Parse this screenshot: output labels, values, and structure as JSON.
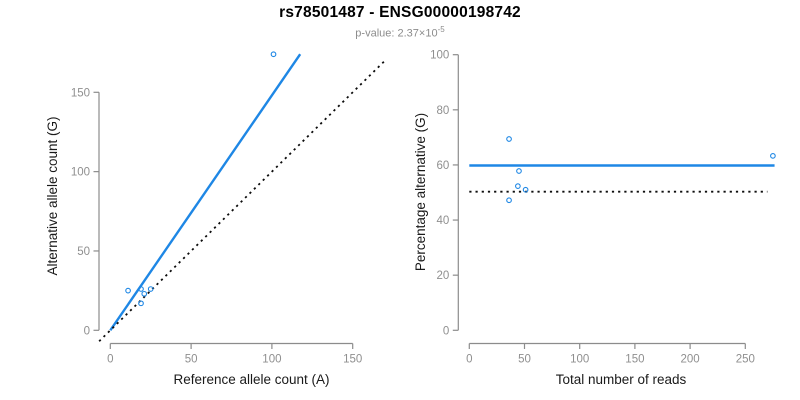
{
  "header": {
    "title": "rs78501487 - ENSG00000198742",
    "subtitle_base": "p-value: 2.37×10",
    "subtitle_exponent": "-5"
  },
  "colors": {
    "accent_blue": "#1E87E5",
    "axis_gray": "#8c8c8c",
    "tick_text_gray": "#8f8f8f",
    "dotted_black": "#0d0d0d"
  },
  "chart_data": [
    {
      "type": "scatter",
      "name": "allele-counts-scatter",
      "xlabel": "Reference allele count (A)",
      "ylabel": "Alternative allele count (G)",
      "x_ticks": [
        0,
        50,
        100,
        150
      ],
      "y_ticks": [
        0,
        50,
        100,
        150
      ],
      "xlim": [
        -7,
        182
      ],
      "ylim": [
        -7,
        182
      ],
      "grid": false,
      "points": [
        [
          11,
          25
        ],
        [
          19,
          26
        ],
        [
          21,
          23
        ],
        [
          25,
          26
        ],
        [
          19,
          17
        ],
        [
          101,
          174
        ]
      ],
      "lines": [
        {
          "name": "fit-line",
          "style": "solid",
          "color_key": "accent_blue",
          "x1": 0,
          "y1": 0,
          "x2": 117.5,
          "y2": 174
        },
        {
          "name": "identity-line",
          "style": "dotted",
          "color_key": "dotted_black",
          "x1": -6.9,
          "y1": -6.9,
          "x2": 171,
          "y2": 171
        }
      ]
    },
    {
      "type": "scatter",
      "name": "percentage-vs-coverage-scatter",
      "xlabel": "Total number of reads",
      "ylabel": "Percentage alternative (G)",
      "x_ticks": [
        0,
        50,
        100,
        150,
        200,
        250
      ],
      "y_ticks": [
        0,
        20,
        40,
        60,
        80,
        100
      ],
      "xlim": [
        -11,
        287
      ],
      "ylim": [
        0,
        100
      ],
      "grid": false,
      "points": [
        [
          36,
          69.4
        ],
        [
          45,
          57.8
        ],
        [
          44,
          52.3
        ],
        [
          51,
          51.0
        ],
        [
          36,
          47.2
        ],
        [
          275,
          63.3
        ]
      ],
      "lines": [
        {
          "name": "mean-percentage-line",
          "style": "solid",
          "color_key": "accent_blue",
          "x1": 0,
          "y1": 59.8,
          "x2": 276.5,
          "y2": 59.8
        },
        {
          "name": "null-fifty-percent-line",
          "style": "dotted",
          "color_key": "dotted_black",
          "x1": 0,
          "y1": 50.3,
          "x2": 270,
          "y2": 50.3
        }
      ]
    }
  ]
}
